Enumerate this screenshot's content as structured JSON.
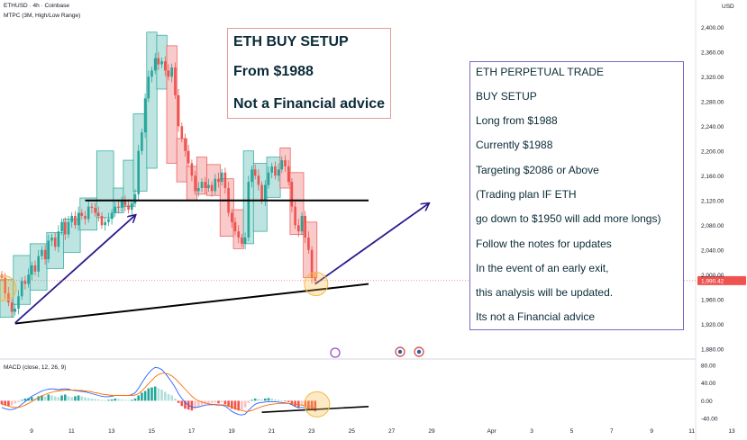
{
  "header": {
    "symbol": "ETHUSD · 4h · Coinbase",
    "indicator": "MTPC (3M, High/Low Range)",
    "currency": "USD"
  },
  "price_label": "1,990.42",
  "macd_label": "MACD (close, 12, 26, 9)",
  "notes": {
    "box1": [
      "ETH BUY SETUP",
      "From $1988",
      "Not a Financial advice"
    ],
    "box2": [
      "ETH PERPETUAL TRADE",
      "BUY SETUP",
      "Long from $1988",
      "Currently $1988",
      "Targeting $2086 or Above",
      "(Trading plan IF ETH",
      "go down to $1950 will add more longs)",
      "Follow the notes for updates",
      "In the event of an early exit,",
      "this analysis will be updated.",
      "Its not a Financial advice"
    ]
  },
  "colors": {
    "up": "#26a69a",
    "down": "#ef5350",
    "up_box": "#b2dfdb",
    "down_box": "#f7c1c0",
    "arrow": "#2a1a8c",
    "trendline": "#000000",
    "highlight": "#f5b942"
  },
  "chart_data": [
    {
      "type": "candlestick",
      "title": "ETHUSD · 4h · Coinbase",
      "y_axis_ticks": [
        2400,
        2360,
        2320,
        2280,
        2240,
        2200,
        2160,
        2120,
        2080,
        2040,
        2000,
        1960,
        1920,
        1880
      ],
      "y_axis_labels": [
        "2,400.00",
        "2,360.00",
        "2,320.00",
        "2,280.00",
        "2,240.00",
        "2,200.00",
        "2,160.00",
        "2,120.00",
        "2,080.00",
        "2,040.00",
        "2,000.00",
        "1,960.00",
        "1,920.00",
        "1,880.00"
      ],
      "ylim": [
        1868,
        2412
      ],
      "x_axis_labels": [
        "9",
        "11",
        "13",
        "15",
        "17",
        "19",
        "21",
        "23",
        "25",
        "27",
        "29",
        "Apr",
        "3",
        "5",
        "7",
        "9",
        "11",
        "13"
      ],
      "x_axis_day_index": [
        0,
        2,
        4,
        6,
        8,
        10,
        12,
        14,
        16,
        18,
        20,
        23,
        25,
        27,
        29,
        31,
        33,
        35
      ],
      "current_price": 1990.42,
      "close": [
        1995,
        1970,
        1955,
        1940,
        1945,
        1965,
        1990,
        1985,
        2000,
        2015,
        2005,
        2030,
        2040,
        2025,
        2055,
        2060,
        2045,
        2070,
        2085,
        2065,
        2085,
        2095,
        2080,
        2100,
        2095,
        2090,
        2110,
        2108,
        2100,
        2095,
        2080,
        2085,
        2090,
        2100,
        2110,
        2108,
        2120,
        2112,
        2105,
        2115,
        2130,
        2200,
        2230,
        2285,
        2320,
        2330,
        2350,
        2340,
        2345,
        2330,
        2320,
        2335,
        2290,
        2240,
        2220,
        2200,
        2180,
        2160,
        2135,
        2140,
        2150,
        2140,
        2145,
        2135,
        2155,
        2150,
        2165,
        2140,
        2100,
        2085,
        2070,
        2060,
        2050,
        2060,
        2150,
        2170,
        2160,
        2145,
        2120,
        2145,
        2165,
        2175,
        2160,
        2170,
        2185,
        2175,
        2150,
        2110,
        2080,
        2070,
        2095,
        2060,
        2040,
        1995,
        1990
      ],
      "boxes": [
        {
          "kind": "up",
          "x_from": 0,
          "x_to": 3,
          "top": 1992,
          "bottom": 1931
        },
        {
          "kind": "up",
          "x_from": 4,
          "x_to": 8,
          "top": 2031,
          "bottom": 1952
        },
        {
          "kind": "up",
          "x_from": 9,
          "x_to": 13,
          "top": 2050,
          "bottom": 1975
        },
        {
          "kind": "up",
          "x_from": 14,
          "x_to": 18,
          "top": 2068,
          "bottom": 2010
        },
        {
          "kind": "up",
          "x_from": 19,
          "x_to": 23,
          "top": 2090,
          "bottom": 2036
        },
        {
          "kind": "up",
          "x_from": 24,
          "x_to": 28,
          "top": 2124,
          "bottom": 2072
        },
        {
          "kind": "up",
          "x_from": 29,
          "x_to": 33,
          "top": 2200,
          "bottom": 2092
        },
        {
          "kind": "up",
          "x_from": 34,
          "x_to": 36,
          "top": 2140,
          "bottom": 2100
        },
        {
          "kind": "up",
          "x_from": 37,
          "x_to": 39,
          "top": 2185,
          "bottom": 2110
        },
        {
          "kind": "up",
          "x_from": 40,
          "x_to": 43,
          "top": 2260,
          "bottom": 2135
        },
        {
          "kind": "up",
          "x_from": 44,
          "x_to": 46,
          "top": 2392,
          "bottom": 2172
        },
        {
          "kind": "up",
          "x_from": 47,
          "x_to": 49,
          "top": 2387,
          "bottom": 2300
        },
        {
          "kind": "down",
          "x_from": 50,
          "x_to": 52,
          "top": 2370,
          "bottom": 2180
        },
        {
          "kind": "down",
          "x_from": 53,
          "x_to": 55,
          "top": 2220,
          "bottom": 2150
        },
        {
          "kind": "down",
          "x_from": 56,
          "x_to": 58,
          "top": 2175,
          "bottom": 2120
        },
        {
          "kind": "down",
          "x_from": 59,
          "x_to": 61,
          "top": 2190,
          "bottom": 2130
        },
        {
          "kind": "down",
          "x_from": 62,
          "x_to": 65,
          "top": 2178,
          "bottom": 2128
        },
        {
          "kind": "down",
          "x_from": 66,
          "x_to": 69,
          "top": 2155,
          "bottom": 2062
        },
        {
          "kind": "down",
          "x_from": 70,
          "x_to": 72,
          "top": 2105,
          "bottom": 2042
        },
        {
          "kind": "up",
          "x_from": 73,
          "x_to": 75,
          "top": 2200,
          "bottom": 2050
        },
        {
          "kind": "up",
          "x_from": 76,
          "x_to": 79,
          "top": 2180,
          "bottom": 2070
        },
        {
          "kind": "up",
          "x_from": 80,
          "x_to": 83,
          "top": 2190,
          "bottom": 2125
        },
        {
          "kind": "down",
          "x_from": 84,
          "x_to": 86,
          "top": 2205,
          "bottom": 2140
        },
        {
          "kind": "down",
          "x_from": 87,
          "x_to": 90,
          "top": 2165,
          "bottom": 2065
        },
        {
          "kind": "down",
          "x_from": 91,
          "x_to": 94,
          "top": 2085,
          "bottom": 1995
        }
      ],
      "lines": [
        {
          "from": {
            "bar": 25,
            "price": 2120
          },
          "to": {
            "bar": 110,
            "price": 2120
          },
          "kind": "horizontal"
        },
        {
          "from": {
            "bar": 4,
            "price": 1921
          },
          "to": {
            "bar": 110,
            "price": 1985
          },
          "kind": "trendline"
        }
      ],
      "arrows": [
        {
          "from": {
            "bar": 4,
            "price": 1922
          },
          "to": {
            "bar": 40,
            "price": 2096
          }
        },
        {
          "from": {
            "bar": 94,
            "price": 1985
          },
          "to": {
            "bar": 128,
            "price": 2115
          }
        }
      ],
      "bars_per_day": 6,
      "first_bar_x": 2,
      "bar_spacing": 3.7
    },
    {
      "type": "bar",
      "title": "MACD (close, 12, 26, 9)",
      "y_axis_ticks": [
        80,
        40,
        0,
        -40
      ],
      "y_axis_labels": [
        "80.00",
        "40.00",
        "0.00",
        "-40.00"
      ],
      "ylim": [
        -54,
        92
      ],
      "histogram": [
        -8,
        -10,
        -12,
        -10,
        -6,
        -3,
        2,
        5,
        6,
        8,
        5,
        10,
        12,
        10,
        14,
        12,
        10,
        8,
        12,
        14,
        10,
        8,
        10,
        12,
        10,
        8,
        6,
        5,
        4,
        3,
        2,
        1,
        2,
        3,
        5,
        4,
        3,
        2,
        1,
        2,
        5,
        12,
        18,
        22,
        28,
        30,
        32,
        28,
        25,
        20,
        15,
        12,
        5,
        -5,
        -12,
        -18,
        -20,
        -22,
        -18,
        -15,
        -10,
        -8,
        -6,
        -5,
        -4,
        -6,
        -3,
        -8,
        -14,
        -18,
        -20,
        -22,
        -20,
        -15,
        -5,
        2,
        5,
        4,
        3,
        5,
        6,
        5,
        3,
        2,
        1,
        -1,
        -3,
        -8,
        -12,
        -15,
        -10,
        -14,
        -18,
        -22,
        -24
      ],
      "macd": [
        -15,
        -18,
        -20,
        -20,
        -18,
        -14,
        -8,
        -2,
        4,
        10,
        14,
        18,
        22,
        24,
        26,
        27,
        26,
        25,
        26,
        27,
        26,
        24,
        23,
        22,
        21,
        20,
        18,
        16,
        14,
        12,
        10,
        9,
        9,
        10,
        12,
        12,
        12,
        12,
        12,
        14,
        18,
        28,
        40,
        52,
        62,
        70,
        75,
        74,
        70,
        62,
        52,
        42,
        30,
        16,
        5,
        -4,
        -10,
        -14,
        -15,
        -14,
        -12,
        -10,
        -9,
        -9,
        -9,
        -10,
        -10,
        -12,
        -18,
        -24,
        -28,
        -31,
        -32,
        -30,
        -22,
        -14,
        -8,
        -5,
        -4,
        -3,
        -2,
        -2,
        -2,
        -3,
        -4,
        -5,
        -6,
        -9,
        -13,
        -16,
        -15,
        -16,
        -18,
        -20,
        -21
      ],
      "signal": [
        -8,
        -10,
        -12,
        -14,
        -15,
        -15,
        -13,
        -10,
        -6,
        -2,
        3,
        7,
        11,
        14,
        17,
        19,
        21,
        22,
        23,
        24,
        24,
        24,
        24,
        23,
        23,
        22,
        21,
        20,
        18,
        17,
        15,
        14,
        13,
        12,
        12,
        12,
        12,
        12,
        12,
        12,
        13,
        16,
        22,
        30,
        38,
        46,
        54,
        59,
        62,
        62,
        60,
        56,
        50,
        42,
        34,
        26,
        18,
        10,
        4,
        0,
        -3,
        -5,
        -7,
        -8,
        -8,
        -9,
        -9,
        -10,
        -11,
        -14,
        -17,
        -20,
        -22,
        -24,
        -24,
        -22,
        -19,
        -16,
        -13,
        -11,
        -9,
        -8,
        -7,
        -6,
        -6,
        -6,
        -6,
        -7,
        -8,
        -9,
        -10,
        -11,
        -12,
        -14,
        -16
      ],
      "trendline": {
        "from": {
          "bar": 78,
          "value": -26
        },
        "to": {
          "bar": 110,
          "value": -13
        }
      }
    }
  ]
}
